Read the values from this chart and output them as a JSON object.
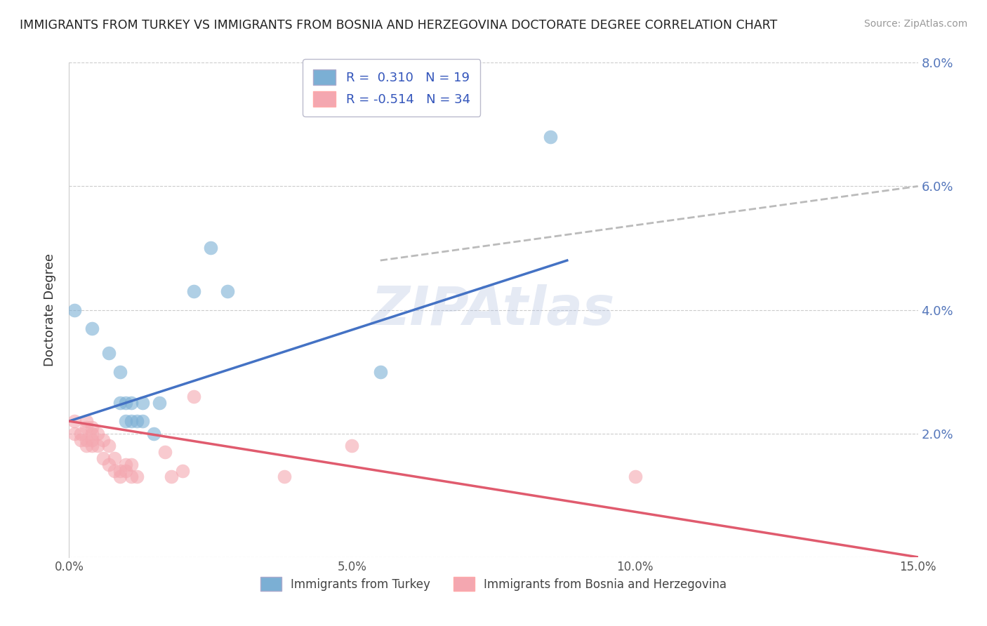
{
  "title": "IMMIGRANTS FROM TURKEY VS IMMIGRANTS FROM BOSNIA AND HERZEGOVINA DOCTORATE DEGREE CORRELATION CHART",
  "source": "Source: ZipAtlas.com",
  "ylabel": "Doctorate Degree",
  "xlabel_ticks": [
    "0.0%",
    "5.0%",
    "10.0%",
    "15.0%"
  ],
  "xlabel_vals": [
    0.0,
    0.05,
    0.1,
    0.15
  ],
  "ylabel_ticks_right": [
    "2.0%",
    "4.0%",
    "6.0%",
    "8.0%"
  ],
  "ylabel_vals": [
    0.0,
    0.02,
    0.04,
    0.06,
    0.08
  ],
  "ylabel_vals_right": [
    0.02,
    0.04,
    0.06,
    0.08
  ],
  "xlim": [
    0.0,
    0.15
  ],
  "ylim": [
    0.0,
    0.08
  ],
  "watermark": "ZIPAtlas",
  "legend1_R": "0.310",
  "legend1_N": "19",
  "legend2_R": "-0.514",
  "legend2_N": "34",
  "blue_color": "#7BAFD4",
  "pink_color": "#F4A7B0",
  "line_blue": "#4472C4",
  "line_pink": "#E05B6E",
  "line_dashed_color": "#BBBBBB",
  "blue_points": [
    [
      0.001,
      0.04
    ],
    [
      0.004,
      0.037
    ],
    [
      0.007,
      0.033
    ],
    [
      0.009,
      0.03
    ],
    [
      0.009,
      0.025
    ],
    [
      0.01,
      0.025
    ],
    [
      0.01,
      0.022
    ],
    [
      0.011,
      0.025
    ],
    [
      0.011,
      0.022
    ],
    [
      0.012,
      0.022
    ],
    [
      0.013,
      0.025
    ],
    [
      0.013,
      0.022
    ],
    [
      0.015,
      0.02
    ],
    [
      0.016,
      0.025
    ],
    [
      0.022,
      0.043
    ],
    [
      0.025,
      0.05
    ],
    [
      0.028,
      0.043
    ],
    [
      0.055,
      0.03
    ],
    [
      0.085,
      0.068
    ]
  ],
  "pink_points": [
    [
      0.001,
      0.022
    ],
    [
      0.001,
      0.02
    ],
    [
      0.002,
      0.02
    ],
    [
      0.002,
      0.019
    ],
    [
      0.003,
      0.022
    ],
    [
      0.003,
      0.021
    ],
    [
      0.003,
      0.019
    ],
    [
      0.003,
      0.018
    ],
    [
      0.004,
      0.021
    ],
    [
      0.004,
      0.02
    ],
    [
      0.004,
      0.019
    ],
    [
      0.004,
      0.018
    ],
    [
      0.005,
      0.02
    ],
    [
      0.005,
      0.018
    ],
    [
      0.006,
      0.019
    ],
    [
      0.006,
      0.016
    ],
    [
      0.007,
      0.018
    ],
    [
      0.007,
      0.015
    ],
    [
      0.008,
      0.016
    ],
    [
      0.008,
      0.014
    ],
    [
      0.009,
      0.014
    ],
    [
      0.009,
      0.013
    ],
    [
      0.01,
      0.015
    ],
    [
      0.01,
      0.014
    ],
    [
      0.011,
      0.015
    ],
    [
      0.011,
      0.013
    ],
    [
      0.012,
      0.013
    ],
    [
      0.017,
      0.017
    ],
    [
      0.018,
      0.013
    ],
    [
      0.02,
      0.014
    ],
    [
      0.022,
      0.026
    ],
    [
      0.038,
      0.013
    ],
    [
      0.05,
      0.018
    ],
    [
      0.1,
      0.013
    ]
  ],
  "blue_line_solid": [
    [
      0.0,
      0.022
    ],
    [
      0.088,
      0.048
    ]
  ],
  "pink_line_solid": [
    [
      0.0,
      0.022
    ],
    [
      0.15,
      0.0
    ]
  ],
  "dashed_line": [
    [
      0.055,
      0.048
    ],
    [
      0.15,
      0.06
    ]
  ]
}
